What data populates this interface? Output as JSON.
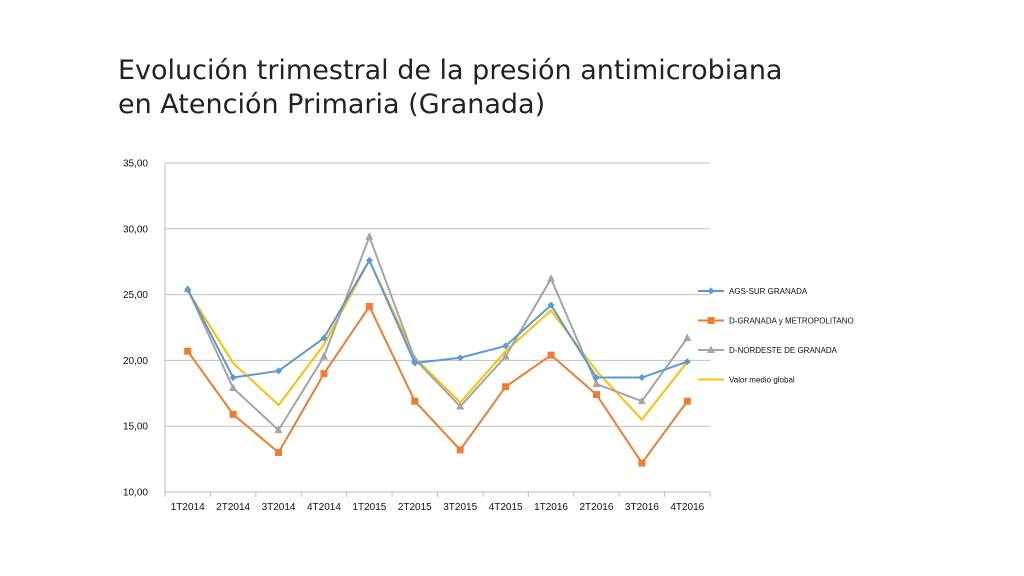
{
  "slide": {
    "title_line1": "Evolución trimestral de la presión antimicrobiana",
    "title_line2": "en Atención Primaria (Granada)"
  },
  "chart_data": {
    "type": "line",
    "title": "",
    "xlabel": "",
    "ylabel": "",
    "ylim": [
      10,
      35
    ],
    "y_ticks": [
      "10,00",
      "15,00",
      "20,00",
      "25,00",
      "30,00",
      "35,00"
    ],
    "grid": "horizontal",
    "legend_position": "right",
    "categories": [
      "1T2014",
      "2T2014",
      "3T2014",
      "4T2014",
      "1T2015",
      "2T2015",
      "3T2015",
      "4T2015",
      "1T2016",
      "2T2016",
      "3T2016",
      "4T2016"
    ],
    "series": [
      {
        "name": "AGS-SUR GRANADA",
        "color": "#5B9BD5",
        "marker": "diamond",
        "values": [
          25.4,
          18.7,
          19.2,
          21.7,
          27.6,
          19.8,
          20.2,
          21.1,
          24.2,
          18.7,
          18.7,
          19.9
        ]
      },
      {
        "name": "D-GRANADA y METROPOLITANO",
        "color": "#ED7D31",
        "marker": "square",
        "values": [
          20.7,
          15.9,
          13.0,
          19.0,
          24.1,
          16.9,
          13.2,
          18.0,
          20.4,
          17.4,
          12.2,
          16.9
        ]
      },
      {
        "name": "D-NORDESTE DE GRANADA",
        "color": "#A5A5A5",
        "marker": "triangle",
        "values": [
          25.4,
          17.9,
          14.7,
          20.3,
          29.4,
          20.1,
          16.5,
          20.3,
          26.2,
          18.2,
          16.9,
          21.7
        ]
      },
      {
        "name": "Valor medio global",
        "color": "#FFC000",
        "marker": "none",
        "values": [
          25.3,
          19.8,
          16.6,
          21.2,
          27.6,
          20.2,
          16.8,
          20.7,
          23.8,
          19.2,
          15.5,
          19.9
        ]
      }
    ]
  }
}
